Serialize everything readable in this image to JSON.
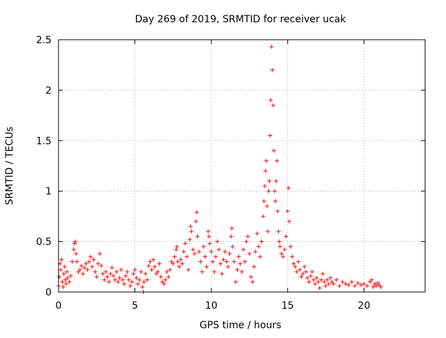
{
  "chart_data": {
    "type": "scatter",
    "title": "Day 269 of 2019, SRMTID for receiver ucak",
    "xlabel": "GPS time / hours",
    "ylabel": "SRMTID / TECUs",
    "xlim": [
      0,
      24
    ],
    "ylim": [
      0,
      2.5
    ],
    "xticks": [
      0,
      5,
      10,
      15,
      20
    ],
    "xtick_labels": [
      "0",
      "5",
      "10",
      "15",
      "20"
    ],
    "yticks": [
      0,
      0.5,
      1,
      1.5,
      2,
      2.5
    ],
    "ytick_labels": [
      "0",
      "0.5",
      "1",
      "1.5",
      "2",
      "2.5"
    ],
    "grid": true,
    "marker": "+",
    "series": [
      {
        "name": "SRMTID",
        "color": "#ff0000",
        "points": [
          [
            0.0,
            0.06
          ],
          [
            0.05,
            0.15
          ],
          [
            0.1,
            0.28
          ],
          [
            0.15,
            0.22
          ],
          [
            0.2,
            0.32
          ],
          [
            0.25,
            0.1
          ],
          [
            0.3,
            0.05
          ],
          [
            0.35,
            0.18
          ],
          [
            0.4,
            0.25
          ],
          [
            0.45,
            0.12
          ],
          [
            0.5,
            0.08
          ],
          [
            0.55,
            0.2
          ],
          [
            0.6,
            0.14
          ],
          [
            0.7,
            0.1
          ],
          [
            0.8,
            0.16
          ],
          [
            0.9,
            0.3
          ],
          [
            1.0,
            0.42
          ],
          [
            1.05,
            0.48
          ],
          [
            1.1,
            0.5
          ],
          [
            1.15,
            0.38
          ],
          [
            1.2,
            0.3
          ],
          [
            1.3,
            0.2
          ],
          [
            1.4,
            0.22
          ],
          [
            1.5,
            0.26
          ],
          [
            1.6,
            0.18
          ],
          [
            1.7,
            0.24
          ],
          [
            1.8,
            0.28
          ],
          [
            1.9,
            0.22
          ],
          [
            2.0,
            0.3
          ],
          [
            2.1,
            0.35
          ],
          [
            2.2,
            0.25
          ],
          [
            2.3,
            0.32
          ],
          [
            2.4,
            0.2
          ],
          [
            2.5,
            0.15
          ],
          [
            2.6,
            0.28
          ],
          [
            2.7,
            0.38
          ],
          [
            2.8,
            0.26
          ],
          [
            2.9,
            0.18
          ],
          [
            3.0,
            0.12
          ],
          [
            3.1,
            0.2
          ],
          [
            3.2,
            0.15
          ],
          [
            3.3,
            0.1
          ],
          [
            3.4,
            0.18
          ],
          [
            3.5,
            0.24
          ],
          [
            3.6,
            0.16
          ],
          [
            3.7,
            0.12
          ],
          [
            3.8,
            0.2
          ],
          [
            3.9,
            0.1
          ],
          [
            4.0,
            0.14
          ],
          [
            4.1,
            0.22
          ],
          [
            4.2,
            0.12
          ],
          [
            4.3,
            0.08
          ],
          [
            4.4,
            0.16
          ],
          [
            4.5,
            0.2
          ],
          [
            4.6,
            0.12
          ],
          [
            4.7,
            0.06
          ],
          [
            4.8,
            0.1
          ],
          [
            4.9,
            0.18
          ],
          [
            5.0,
            0.22
          ],
          [
            5.1,
            0.14
          ],
          [
            5.2,
            0.08
          ],
          [
            5.3,
            0.12
          ],
          [
            5.4,
            0.2
          ],
          [
            5.5,
            0.05
          ],
          [
            5.55,
            0.0
          ],
          [
            5.6,
            0.1
          ],
          [
            5.7,
            0.18
          ],
          [
            5.8,
            0.12
          ],
          [
            5.9,
            0.26
          ],
          [
            6.0,
            0.3
          ],
          [
            6.1,
            0.22
          ],
          [
            6.2,
            0.32
          ],
          [
            6.3,
            0.25
          ],
          [
            6.4,
            0.18
          ],
          [
            6.5,
            0.2
          ],
          [
            6.6,
            0.28
          ],
          [
            6.7,
            0.15
          ],
          [
            6.8,
            0.1
          ],
          [
            6.9,
            0.08
          ],
          [
            7.0,
            0.12
          ],
          [
            7.1,
            0.2
          ],
          [
            7.2,
            0.15
          ],
          [
            7.3,
            0.22
          ],
          [
            7.4,
            0.3
          ],
          [
            7.5,
            0.28
          ],
          [
            7.6,
            0.35
          ],
          [
            7.7,
            0.42
          ],
          [
            7.75,
            0.45
          ],
          [
            7.8,
            0.3
          ],
          [
            7.9,
            0.25
          ],
          [
            8.0,
            0.32
          ],
          [
            8.1,
            0.28
          ],
          [
            8.2,
            0.4
          ],
          [
            8.3,
            0.48
          ],
          [
            8.4,
            0.35
          ],
          [
            8.5,
            0.22
          ],
          [
            8.6,
            0.52
          ],
          [
            8.65,
            0.65
          ],
          [
            8.7,
            0.6
          ],
          [
            8.8,
            0.42
          ],
          [
            8.9,
            0.38
          ],
          [
            9.0,
            0.7
          ],
          [
            9.05,
            0.79
          ],
          [
            9.1,
            0.55
          ],
          [
            9.2,
            0.4
          ],
          [
            9.3,
            0.3
          ],
          [
            9.4,
            0.2
          ],
          [
            9.5,
            0.45
          ],
          [
            9.6,
            0.35
          ],
          [
            9.7,
            0.25
          ],
          [
            9.8,
            0.6
          ],
          [
            9.85,
            0.55
          ],
          [
            9.9,
            0.48
          ],
          [
            10.0,
            0.4
          ],
          [
            10.1,
            0.3
          ],
          [
            10.2,
            0.2
          ],
          [
            10.3,
            0.35
          ],
          [
            10.4,
            0.5
          ],
          [
            10.5,
            0.42
          ],
          [
            10.6,
            0.28
          ],
          [
            10.7,
            0.18
          ],
          [
            10.8,
            0.32
          ],
          [
            10.9,
            0.4
          ],
          [
            11.0,
            0.3
          ],
          [
            11.1,
            0.25
          ],
          [
            11.2,
            0.38
          ],
          [
            11.3,
            0.55
          ],
          [
            11.35,
            0.63
          ],
          [
            11.4,
            0.45
          ],
          [
            11.5,
            0.3
          ],
          [
            11.6,
            0.1
          ],
          [
            11.7,
            0.22
          ],
          [
            11.8,
            0.35
          ],
          [
            11.9,
            0.28
          ],
          [
            12.0,
            0.2
          ],
          [
            12.1,
            0.42
          ],
          [
            12.2,
            0.3
          ],
          [
            12.3,
            0.5
          ],
          [
            12.4,
            0.55
          ],
          [
            12.5,
            0.38
          ],
          [
            12.6,
            0.15
          ],
          [
            12.7,
            0.1
          ],
          [
            12.8,
            0.25
          ],
          [
            12.9,
            0.4
          ],
          [
            13.0,
            0.58
          ],
          [
            13.1,
            0.45
          ],
          [
            13.2,
            0.35
          ],
          [
            13.3,
            0.5
          ],
          [
            13.4,
            0.75
          ],
          [
            13.45,
            0.9
          ],
          [
            13.5,
            1.05
          ],
          [
            13.55,
            1.2
          ],
          [
            13.6,
            1.3
          ],
          [
            13.65,
            0.85
          ],
          [
            13.7,
            0.6
          ],
          [
            13.75,
            1.0
          ],
          [
            13.8,
            1.1
          ],
          [
            13.85,
            1.55
          ],
          [
            13.9,
            1.9
          ],
          [
            13.95,
            2.43
          ],
          [
            14.0,
            2.2
          ],
          [
            14.05,
            1.85
          ],
          [
            14.1,
            1.4
          ],
          [
            14.15,
            1.0
          ],
          [
            14.2,
            0.9
          ],
          [
            14.25,
            1.1
          ],
          [
            14.3,
            1.3
          ],
          [
            14.35,
            0.8
          ],
          [
            14.4,
            0.6
          ],
          [
            14.45,
            0.5
          ],
          [
            14.5,
            0.45
          ],
          [
            14.6,
            0.38
          ],
          [
            14.7,
            0.35
          ],
          [
            14.8,
            0.42
          ],
          [
            14.9,
            0.55
          ],
          [
            15.0,
            0.8
          ],
          [
            15.05,
            1.03
          ],
          [
            15.1,
            0.7
          ],
          [
            15.2,
            0.45
          ],
          [
            15.3,
            0.35
          ],
          [
            15.4,
            0.28
          ],
          [
            15.5,
            0.25
          ],
          [
            15.6,
            0.2
          ],
          [
            15.7,
            0.3
          ],
          [
            15.8,
            0.22
          ],
          [
            15.9,
            0.15
          ],
          [
            16.0,
            0.18
          ],
          [
            16.1,
            0.25
          ],
          [
            16.2,
            0.2
          ],
          [
            16.3,
            0.14
          ],
          [
            16.4,
            0.1
          ],
          [
            16.5,
            0.16
          ],
          [
            16.6,
            0.2
          ],
          [
            16.7,
            0.12
          ],
          [
            16.8,
            0.08
          ],
          [
            16.9,
            0.14
          ],
          [
            17.0,
            0.1
          ],
          [
            17.1,
            0.04
          ],
          [
            17.2,
            0.12
          ],
          [
            17.3,
            0.18
          ],
          [
            17.4,
            0.1
          ],
          [
            17.5,
            0.06
          ],
          [
            17.6,
            0.12
          ],
          [
            17.7,
            0.08
          ],
          [
            17.8,
            0.14
          ],
          [
            17.9,
            0.1
          ],
          [
            18.0,
            0.08
          ],
          [
            18.2,
            0.12
          ],
          [
            18.4,
            0.06
          ],
          [
            18.6,
            0.1
          ],
          [
            18.8,
            0.08
          ],
          [
            19.0,
            0.07
          ],
          [
            19.2,
            0.1
          ],
          [
            19.4,
            0.06
          ],
          [
            19.6,
            0.09
          ],
          [
            19.8,
            0.07
          ],
          [
            20.0,
            0.08
          ],
          [
            20.2,
            0.06
          ],
          [
            20.4,
            0.1
          ],
          [
            20.5,
            0.12
          ],
          [
            20.6,
            0.05
          ],
          [
            20.7,
            0.08
          ],
          [
            20.8,
            0.06
          ],
          [
            20.9,
            0.09
          ],
          [
            21.0,
            0.07
          ],
          [
            21.1,
            0.05
          ]
        ]
      }
    ]
  }
}
